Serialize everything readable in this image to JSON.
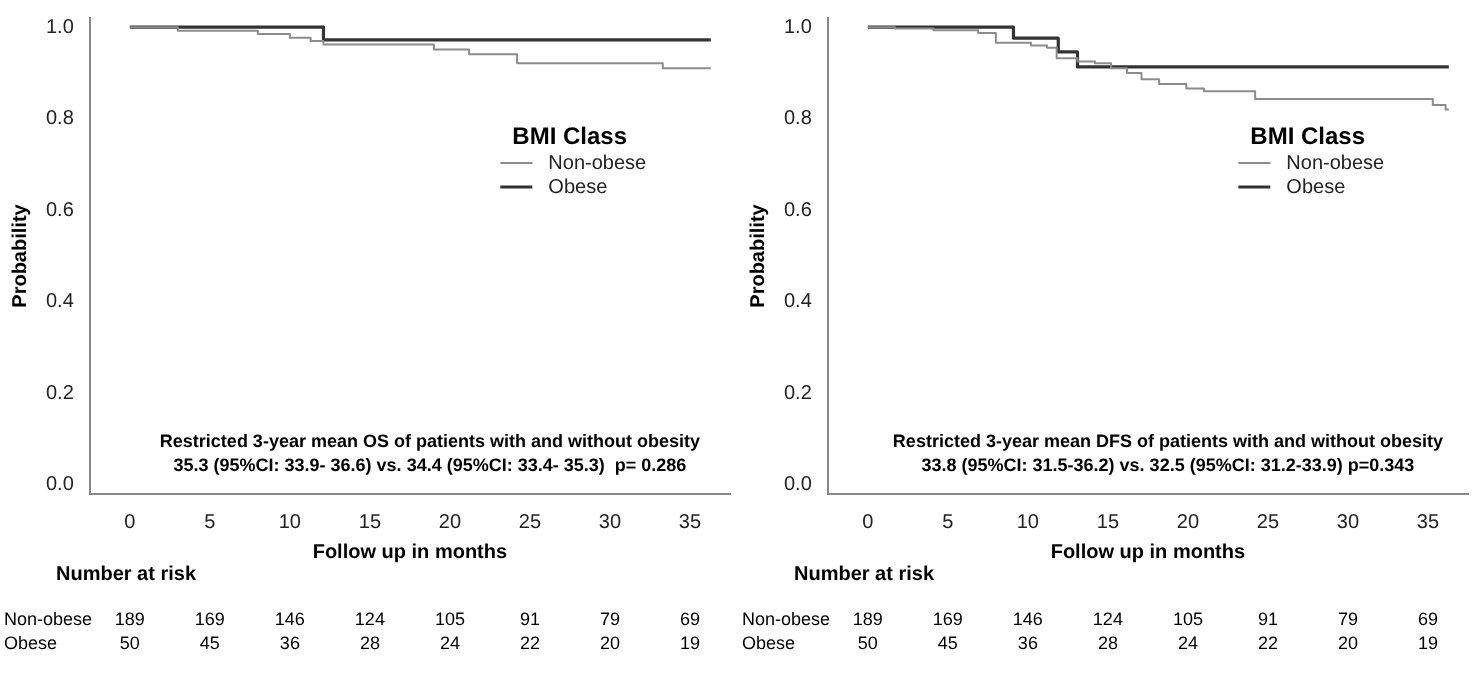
{
  "chart_data": [
    {
      "type": "step",
      "xlabel": "Follow up in months",
      "ylabel": "Probability",
      "legend_title": "BMI Class",
      "legend": "right",
      "xlim": [
        -2.5,
        37.5
      ],
      "xticks": [
        0,
        5,
        10,
        15,
        20,
        25,
        30,
        35
      ],
      "ylim": [
        -0.02,
        1.02
      ],
      "yticks": [
        {
          "value": 0,
          "label": "0.0"
        },
        {
          "value": 0.2,
          "label": "0.2"
        },
        {
          "value": 0.4,
          "label": "0.4"
        },
        {
          "value": 0.6,
          "label": "0.6"
        },
        {
          "value": 0.8,
          "label": "0.8"
        },
        {
          "value": 1,
          "label": "1.0"
        }
      ],
      "grid": false,
      "marker": "none",
      "series": [
        {
          "name": "Non-obese",
          "color": "#8c8c8c",
          "x": [
            0,
            3.0,
            8.0,
            10.0,
            11.3,
            12.1,
            13.2,
            19.0,
            21.2,
            24.2,
            33.3,
            36.3
          ],
          "values": [
            1,
            0.992,
            0.985,
            0.977,
            0.97,
            0.962,
            0.962,
            0.951,
            0.941,
            0.921,
            0.91,
            0.91
          ]
        },
        {
          "name": "Obese",
          "color": "#333333",
          "x": [
            0,
            12.1,
            36.3
          ],
          "values": [
            1,
            0.972,
            0.972
          ]
        }
      ],
      "annotations": [
        "Restricted 3-year mean OS of patients with and without obesity",
        "35.3 (95%CI: 33.9- 36.6) vs. 34.4 (95%CI: 33.4- 35.3)  p= 0.286",
        "Number at risk",
        "Non-obese 189 169 146 124 105 91 79 69",
        "Obese 50 45 36 28 24 22 20 19"
      ]
    },
    {
      "type": "step",
      "xlabel": "Follow up in months",
      "ylabel": "Probability",
      "legend_title": "BMI Class",
      "legend": "right",
      "xlim": [
        -2.5,
        37.5
      ],
      "xticks": [
        0,
        5,
        10,
        15,
        20,
        25,
        30,
        35
      ],
      "ylim": [
        -0.02,
        1.02
      ],
      "yticks": [
        {
          "value": 0,
          "label": "0.0"
        },
        {
          "value": 0.2,
          "label": "0.2"
        },
        {
          "value": 0.4,
          "label": "0.4"
        },
        {
          "value": 0.6,
          "label": "0.6"
        },
        {
          "value": 0.8,
          "label": "0.8"
        },
        {
          "value": 1,
          "label": "1.0"
        }
      ],
      "grid": false,
      "marker": "none",
      "series": [
        {
          "name": "Non-obese",
          "color": "#8c8c8c",
          "x": [
            0,
            1.7,
            4.1,
            6.9,
            8.0,
            10.2,
            11.2,
            11.8,
            13.1,
            14.2,
            15.2,
            16.2,
            17.1,
            18.2,
            19.9,
            21.0,
            24.2,
            35.3,
            36.1,
            36.3
          ],
          "values": [
            1,
            0.997,
            0.993,
            0.987,
            0.966,
            0.96,
            0.955,
            0.932,
            0.925,
            0.921,
            0.91,
            0.9,
            0.886,
            0.876,
            0.866,
            0.86,
            0.843,
            0.83,
            0.82,
            0.82
          ]
        },
        {
          "name": "Obese",
          "color": "#333333",
          "x": [
            0,
            9.1,
            11.9,
            13.1,
            36.3
          ],
          "values": [
            1,
            0.976,
            0.946,
            0.913,
            0.913
          ]
        }
      ],
      "annotations": [
        "Restricted 3-year mean DFS of patients with and without obesity",
        "33.8 (95%CI: 31.5-36.2) vs. 32.5 (95%CI: 31.2-33.9) p=0.343",
        "Number at risk",
        "Non-obese 189 169 146 124 105 91 79 69",
        "Obese 50 45 36 28 24 22 20 19"
      ]
    }
  ]
}
